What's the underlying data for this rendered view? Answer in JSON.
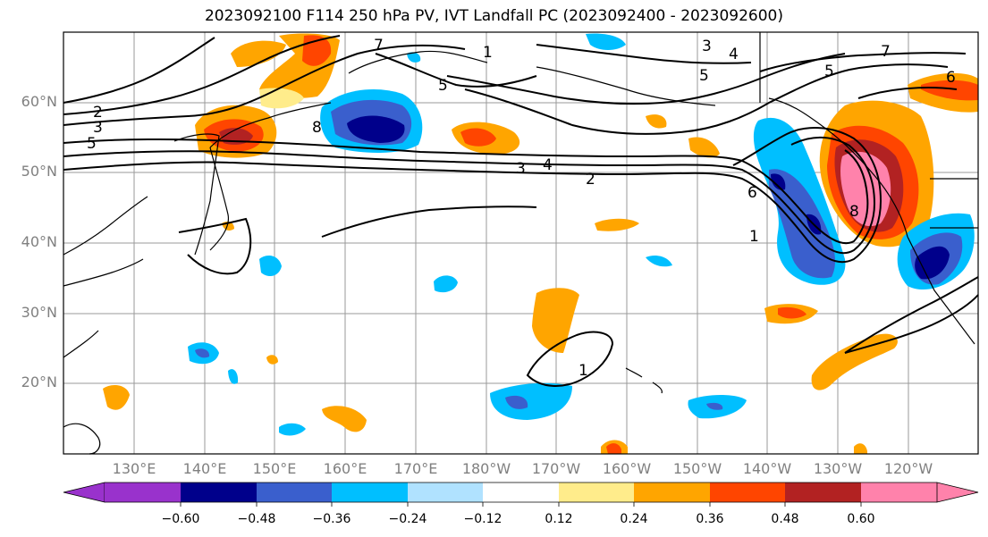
{
  "title": "2023092100 F114 250 hPa PV, IVT Landfall PC (2023092400 - 2023092600)",
  "map": {
    "lat_labels": [
      "60°N",
      "50°N",
      "40°N",
      "30°N",
      "20°N"
    ],
    "lon_labels": [
      "130°E",
      "140°E",
      "150°E",
      "160°E",
      "170°E",
      "180°W",
      "170°W",
      "160°W",
      "150°W",
      "140°W",
      "130°W",
      "120°W"
    ],
    "contour_labels": [
      "2",
      "3",
      "5",
      "7",
      "3",
      "4",
      "5",
      "5",
      "1",
      "8",
      "3",
      "4",
      "2",
      "6",
      "8",
      "1",
      "5",
      "7",
      "6",
      "1"
    ]
  },
  "colorbar": {
    "colors": [
      "#9932cc",
      "#00008b",
      "#3a5fcd",
      "#00bfff",
      "#b0e2ff",
      "#ffffff",
      "#ffec8b",
      "#ffa500",
      "#ff4500",
      "#b22222",
      "#ff82ab"
    ],
    "tick_labels": [
      "−0.60",
      "−0.48",
      "−0.36",
      "−0.24",
      "−0.12",
      "0.12",
      "0.24",
      "0.36",
      "0.48",
      "0.60"
    ]
  }
}
